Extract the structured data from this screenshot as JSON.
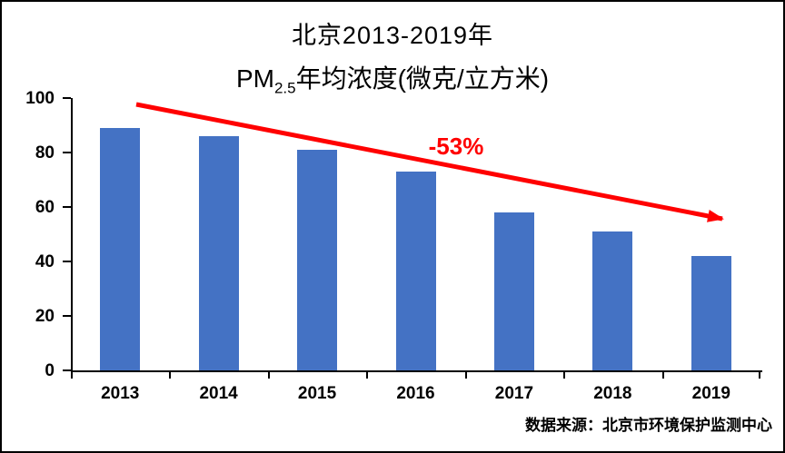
{
  "frame": {
    "background": "#ffffff",
    "border_color": "#000000"
  },
  "chart_data": {
    "type": "bar",
    "title": "北京2013-2019年 PM2.5年均浓度(微克/立方米)",
    "title_line1": "北京2013-2019年",
    "title_line2": {
      "prefix": "PM",
      "subscript": "2.5",
      "suffix": "年均浓度(微克/立方米)"
    },
    "categories": [
      "2013",
      "2014",
      "2015",
      "2016",
      "2017",
      "2018",
      "2019"
    ],
    "values": [
      89,
      86,
      81,
      73,
      58,
      51,
      42
    ],
    "xlabel": "",
    "ylabel": "",
    "ylim": [
      0,
      100
    ],
    "yticks": [
      0,
      20,
      40,
      60,
      80,
      100
    ],
    "grid": false,
    "legend": false,
    "bar_color": "#4472C4",
    "axis_color": "#000000",
    "annotation": {
      "label": "-53%",
      "color": "#FF0000"
    }
  },
  "source_note": "数据来源：北京市环境保护监测中心"
}
